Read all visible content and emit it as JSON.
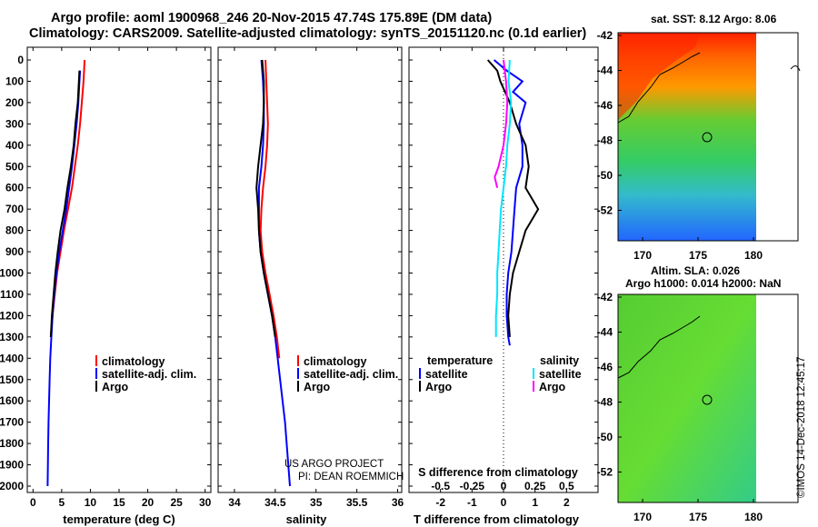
{
  "title_line1": "Argo profile: aoml 1900968_246 20-Nov-2015 47.74S 175.89E (DM data)",
  "title_line2": "Climatology: CARS2009. Satellite-adjusted climatology: synTS_20151120.nc (0.1d earlier)",
  "depth_ticks": [
    "0",
    "100",
    "200",
    "300",
    "400",
    "500",
    "600",
    "700",
    "800",
    "900",
    "1000",
    "1100",
    "1200",
    "1300",
    "1400",
    "1500",
    "1600",
    "1700",
    "1800",
    "1900",
    "2000"
  ],
  "colors": {
    "climatology": "#ff0000",
    "satellite": "#0000ff",
    "argo": "#000000",
    "salinity_satellite": "#00e5ff",
    "salinity_argo": "#ff00ff"
  },
  "panel_temperature": {
    "xlabel": "temperature (deg C)",
    "xticks": [
      "0",
      "5",
      "10",
      "15",
      "20",
      "25",
      "30"
    ],
    "legend": [
      "climatology",
      "satellite-adj. clim.",
      "Argo"
    ]
  },
  "panel_salinity": {
    "xlabel": "salinity",
    "xticks": [
      "34",
      "34.5",
      "35",
      "35.5",
      "36"
    ],
    "legend": [
      "climatology",
      "satellite-adj. clim.",
      "Argo"
    ],
    "credit_line1": "US ARGO PROJECT",
    "credit_line2": "PI: DEAN ROEMMICH"
  },
  "panel_difference": {
    "xlabel": "T difference from climatology",
    "xticks": [
      "-2",
      "-1",
      "0",
      "1",
      "2"
    ],
    "s_label": "S difference from climatology",
    "s_ticks": [
      "-0.5",
      "-0.25",
      "0",
      "0.25",
      "0.5"
    ],
    "legend_temperature_header": "temperature",
    "legend_salinity_header": "salinity",
    "legend_temperature": [
      "satellite",
      "Argo"
    ],
    "legend_salinity": [
      "satellite",
      "Argo"
    ]
  },
  "map_sst": {
    "label": "sat. SST: 8.12 Argo: 8.06",
    "lat_ticks": [
      "-42",
      "-44",
      "-46",
      "-48",
      "-50",
      "-52"
    ],
    "lon_ticks": [
      "170",
      "175",
      "180"
    ]
  },
  "map_sla": {
    "label_line1": "Altim. SLA: 0.026",
    "label_line2": "Argo h1000: 0.014 h2000: NaN",
    "lat_ticks": [
      "-42",
      "-44",
      "-46",
      "-48",
      "-50",
      "-52"
    ],
    "lon_ticks": [
      "170",
      "175",
      "180"
    ]
  },
  "stamp": "©IMOS 14-Dec-2018 12:45:17",
  "chart_data": [
    {
      "type": "line",
      "title": "",
      "xlabel": "temperature (deg C)",
      "ylabel": "",
      "xlim": [
        -1,
        31
      ],
      "ylim": [
        2050,
        0
      ],
      "series": [
        {
          "name": "climatology",
          "color": "#ff0000",
          "x": [
            9.0,
            8.8,
            8.5,
            8.2,
            7.8,
            7.3,
            6.8,
            6.1,
            5.4,
            4.8,
            4.2,
            3.8,
            3.4,
            3.1
          ],
          "y": [
            0,
            100,
            200,
            300,
            400,
            500,
            600,
            700,
            800,
            900,
            1000,
            1100,
            1200,
            1300
          ]
        },
        {
          "name": "satellite-adj. clim.",
          "color": "#0000ff",
          "x": [
            8.2,
            8.1,
            7.9,
            7.6,
            7.2,
            6.8,
            6.3,
            5.8,
            5.2,
            4.6,
            4.1,
            3.7,
            3.4,
            3.2,
            3.0,
            2.9,
            2.8,
            2.7,
            2.65,
            2.6,
            2.55
          ],
          "y": [
            50,
            100,
            200,
            300,
            400,
            500,
            600,
            700,
            800,
            900,
            1000,
            1100,
            1200,
            1300,
            1400,
            1500,
            1600,
            1700,
            1800,
            1900,
            2000
          ]
        },
        {
          "name": "Argo",
          "color": "#000000",
          "x": [
            8.1,
            8.0,
            7.8,
            7.4,
            7.1,
            6.6,
            6.0,
            5.5,
            4.8,
            4.3,
            3.9,
            3.6,
            3.3,
            3.1
          ],
          "y": [
            50,
            100,
            200,
            300,
            400,
            500,
            600,
            700,
            800,
            900,
            1000,
            1100,
            1200,
            1300
          ]
        }
      ]
    },
    {
      "type": "line",
      "title": "",
      "xlabel": "salinity",
      "ylabel": "",
      "xlim": [
        33.8,
        36.05
      ],
      "ylim": [
        2050,
        0
      ],
      "series": [
        {
          "name": "climatology",
          "color": "#ff0000",
          "x": [
            34.38,
            34.39,
            34.4,
            34.41,
            34.4,
            34.38,
            34.35,
            34.33,
            34.32,
            34.34,
            34.38,
            34.43,
            34.48,
            34.52,
            34.55
          ],
          "y": [
            0,
            100,
            200,
            300,
            400,
            500,
            600,
            700,
            800,
            900,
            1000,
            1100,
            1200,
            1300,
            1400
          ]
        },
        {
          "name": "satellite-adj. clim.",
          "color": "#0000ff",
          "x": [
            34.33,
            34.35,
            34.36,
            34.36,
            34.35,
            34.33,
            34.3,
            34.3,
            34.3,
            34.32,
            34.36,
            34.41,
            34.46,
            34.5,
            34.53,
            34.56,
            34.59,
            34.62,
            34.64,
            34.66,
            34.68
          ],
          "y": [
            0,
            100,
            200,
            300,
            400,
            500,
            600,
            700,
            800,
            900,
            1000,
            1100,
            1200,
            1300,
            1400,
            1500,
            1600,
            1700,
            1800,
            1900,
            2000
          ]
        },
        {
          "name": "Argo",
          "color": "#000000",
          "x": [
            34.34,
            34.36,
            34.36,
            34.35,
            34.32,
            34.29,
            34.27,
            34.29,
            34.3,
            34.32,
            34.36,
            34.41,
            34.46,
            34.5
          ],
          "y": [
            0,
            100,
            200,
            300,
            400,
            500,
            600,
            700,
            800,
            900,
            1000,
            1100,
            1200,
            1300
          ]
        }
      ]
    },
    {
      "type": "line",
      "title": "",
      "xlabel": "T difference from climatology",
      "ylabel": "",
      "xlim": [
        -3,
        3
      ],
      "ylim": [
        2050,
        0
      ],
      "series": [
        {
          "name": "temperature satellite",
          "color": "#0000ff",
          "x": [
            -0.3,
            0.1,
            0.6,
            0.3,
            0.7,
            0.5,
            0.6,
            0.6,
            0.4,
            0.35,
            0.3,
            0.25,
            0.15,
            0.1,
            0.1,
            0.15,
            0.2
          ],
          "y": [
            0,
            50,
            100,
            150,
            200,
            300,
            400,
            500,
            600,
            700,
            800,
            900,
            1000,
            1100,
            1200,
            1300,
            1340
          ]
        },
        {
          "name": "temperature Argo",
          "color": "#000000",
          "x": [
            -0.5,
            -0.2,
            -0.1,
            0.2,
            0.4,
            0.7,
            0.8,
            0.7,
            1.1,
            0.7,
            0.5,
            0.3,
            0.2,
            0.15,
            0.2
          ],
          "y": [
            0,
            50,
            100,
            200,
            300,
            400,
            500,
            600,
            700,
            800,
            900,
            1000,
            1100,
            1200,
            1300
          ]
        },
        {
          "name": "salinity satellite",
          "color": "#00e5ff",
          "x": [
            0.05,
            0.04,
            0.06,
            0.05,
            0.03,
            0.02,
            0.0,
            -0.02,
            -0.03,
            -0.04,
            -0.05,
            -0.05,
            -0.06,
            -0.06
          ],
          "y": [
            0,
            100,
            200,
            300,
            400,
            500,
            600,
            700,
            800,
            900,
            1000,
            1100,
            1200,
            1300
          ]
        },
        {
          "name": "salinity Argo",
          "color": "#ff00ff",
          "x": [
            0.0,
            0.02,
            0.03,
            0.02,
            0.0,
            -0.04,
            -0.07,
            -0.05
          ],
          "y": [
            0,
            100,
            200,
            300,
            400,
            500,
            550,
            600
          ]
        }
      ]
    }
  ]
}
